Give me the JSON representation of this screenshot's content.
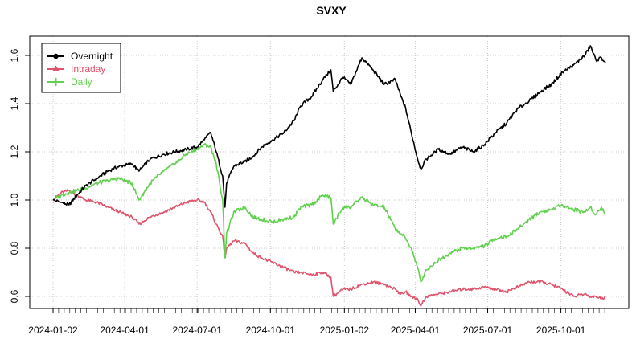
{
  "chart_data": {
    "type": "line",
    "title": "SVXY",
    "xlabel": "",
    "ylabel": "",
    "grid": true,
    "legend_position": "top-left",
    "xlim": [
      "2024-01-02",
      "2025-11-30"
    ],
    "ylim": [
      0.55,
      1.68
    ],
    "x_ticks": [
      "2024-01-02",
      "2024-04-01",
      "2024-07-01",
      "2024-10-01",
      "2025-01-02",
      "2025-04-01",
      "2025-07-01",
      "2025-10-01"
    ],
    "y_ticks": [
      0.6,
      0.8,
      1.0,
      1.2,
      1.4,
      1.6
    ],
    "series": [
      {
        "name": "Overnight",
        "color": "#000000",
        "marker": "circle",
        "points": [
          [
            "2024-01-02",
            1.0
          ],
          [
            "2024-01-12",
            0.99
          ],
          [
            "2024-01-22",
            0.98
          ],
          [
            "2024-02-01",
            1.02
          ],
          [
            "2024-02-12",
            1.06
          ],
          [
            "2024-02-26",
            1.09
          ],
          [
            "2024-03-11",
            1.12
          ],
          [
            "2024-03-25",
            1.14
          ],
          [
            "2024-04-10",
            1.15
          ],
          [
            "2024-04-19",
            1.12
          ],
          [
            "2024-05-03",
            1.17
          ],
          [
            "2024-05-20",
            1.19
          ],
          [
            "2024-06-03",
            1.2
          ],
          [
            "2024-06-17",
            1.21
          ],
          [
            "2024-07-01",
            1.22
          ],
          [
            "2024-07-10",
            1.25
          ],
          [
            "2024-07-18",
            1.28
          ],
          [
            "2024-07-25",
            1.2
          ],
          [
            "2024-08-02",
            1.1
          ],
          [
            "2024-08-05",
            0.97
          ],
          [
            "2024-08-07",
            1.07
          ],
          [
            "2024-08-16",
            1.14
          ],
          [
            "2024-08-30",
            1.16
          ],
          [
            "2024-09-09",
            1.18
          ],
          [
            "2024-09-20",
            1.22
          ],
          [
            "2024-10-04",
            1.25
          ],
          [
            "2024-10-18",
            1.28
          ],
          [
            "2024-10-31",
            1.33
          ],
          [
            "2024-11-08",
            1.39
          ],
          [
            "2024-11-22",
            1.43
          ],
          [
            "2024-12-06",
            1.5
          ],
          [
            "2024-12-16",
            1.54
          ],
          [
            "2024-12-19",
            1.45
          ],
          [
            "2024-12-31",
            1.51
          ],
          [
            "2025-01-10",
            1.48
          ],
          [
            "2025-01-24",
            1.59
          ],
          [
            "2025-02-07",
            1.54
          ],
          [
            "2025-02-21",
            1.48
          ],
          [
            "2025-03-07",
            1.5
          ],
          [
            "2025-03-14",
            1.43
          ],
          [
            "2025-03-20",
            1.38
          ],
          [
            "2025-03-27",
            1.28
          ],
          [
            "2025-04-04",
            1.17
          ],
          [
            "2025-04-08",
            1.13
          ],
          [
            "2025-04-15",
            1.17
          ],
          [
            "2025-04-30",
            1.21
          ],
          [
            "2025-05-15",
            1.19
          ],
          [
            "2025-05-30",
            1.22
          ],
          [
            "2025-06-13",
            1.2
          ],
          [
            "2025-06-27",
            1.23
          ],
          [
            "2025-07-11",
            1.28
          ],
          [
            "2025-07-25",
            1.32
          ],
          [
            "2025-08-08",
            1.38
          ],
          [
            "2025-08-22",
            1.41
          ],
          [
            "2025-09-05",
            1.45
          ],
          [
            "2025-09-19",
            1.48
          ],
          [
            "2025-10-03",
            1.53
          ],
          [
            "2025-10-17",
            1.56
          ],
          [
            "2025-10-31",
            1.6
          ],
          [
            "2025-11-07",
            1.64
          ],
          [
            "2025-11-14",
            1.58
          ],
          [
            "2025-11-21",
            1.59
          ],
          [
            "2025-11-26",
            1.57
          ]
        ]
      },
      {
        "name": "Intraday",
        "color": "#DF536B",
        "marker": "triangle",
        "points": [
          [
            "2024-01-02",
            1.0
          ],
          [
            "2024-01-12",
            1.03
          ],
          [
            "2024-01-22",
            1.04
          ],
          [
            "2024-02-01",
            1.02
          ],
          [
            "2024-02-12",
            1.0
          ],
          [
            "2024-02-26",
            0.99
          ],
          [
            "2024-03-11",
            0.97
          ],
          [
            "2024-03-25",
            0.95
          ],
          [
            "2024-04-10",
            0.93
          ],
          [
            "2024-04-19",
            0.9
          ],
          [
            "2024-05-03",
            0.93
          ],
          [
            "2024-05-20",
            0.95
          ],
          [
            "2024-06-03",
            0.97
          ],
          [
            "2024-06-17",
            0.99
          ],
          [
            "2024-07-01",
            1.0
          ],
          [
            "2024-07-10",
            0.99
          ],
          [
            "2024-07-18",
            0.95
          ],
          [
            "2024-07-25",
            0.9
          ],
          [
            "2024-08-02",
            0.85
          ],
          [
            "2024-08-05",
            0.76
          ],
          [
            "2024-08-07",
            0.8
          ],
          [
            "2024-08-16",
            0.83
          ],
          [
            "2024-08-30",
            0.82
          ],
          [
            "2024-09-09",
            0.78
          ],
          [
            "2024-09-20",
            0.76
          ],
          [
            "2024-10-04",
            0.74
          ],
          [
            "2024-10-18",
            0.72
          ],
          [
            "2024-10-31",
            0.7
          ],
          [
            "2024-11-08",
            0.7
          ],
          [
            "2024-11-22",
            0.69
          ],
          [
            "2024-12-06",
            0.7
          ],
          [
            "2024-12-16",
            0.68
          ],
          [
            "2024-12-19",
            0.6
          ],
          [
            "2024-12-31",
            0.63
          ],
          [
            "2025-01-10",
            0.63
          ],
          [
            "2025-01-24",
            0.65
          ],
          [
            "2025-02-07",
            0.66
          ],
          [
            "2025-02-21",
            0.65
          ],
          [
            "2025-03-07",
            0.63
          ],
          [
            "2025-03-14",
            0.61
          ],
          [
            "2025-03-20",
            0.62
          ],
          [
            "2025-03-27",
            0.6
          ],
          [
            "2025-04-04",
            0.59
          ],
          [
            "2025-04-08",
            0.56
          ],
          [
            "2025-04-15",
            0.6
          ],
          [
            "2025-04-30",
            0.61
          ],
          [
            "2025-05-15",
            0.62
          ],
          [
            "2025-05-30",
            0.63
          ],
          [
            "2025-06-13",
            0.63
          ],
          [
            "2025-06-27",
            0.64
          ],
          [
            "2025-07-11",
            0.63
          ],
          [
            "2025-07-25",
            0.62
          ],
          [
            "2025-08-08",
            0.64
          ],
          [
            "2025-08-22",
            0.66
          ],
          [
            "2025-09-05",
            0.66
          ],
          [
            "2025-09-19",
            0.65
          ],
          [
            "2025-10-03",
            0.63
          ],
          [
            "2025-10-17",
            0.6
          ],
          [
            "2025-10-31",
            0.61
          ],
          [
            "2025-11-07",
            0.6
          ],
          [
            "2025-11-14",
            0.6
          ],
          [
            "2025-11-21",
            0.59
          ],
          [
            "2025-11-26",
            0.6
          ]
        ]
      },
      {
        "name": "Daily",
        "color": "#61D04F",
        "marker": "plus",
        "points": [
          [
            "2024-01-02",
            1.0
          ],
          [
            "2024-01-12",
            1.02
          ],
          [
            "2024-01-22",
            1.03
          ],
          [
            "2024-02-01",
            1.04
          ],
          [
            "2024-02-12",
            1.05
          ],
          [
            "2024-02-26",
            1.07
          ],
          [
            "2024-03-11",
            1.08
          ],
          [
            "2024-03-25",
            1.09
          ],
          [
            "2024-04-10",
            1.07
          ],
          [
            "2024-04-19",
            1.0
          ],
          [
            "2024-05-03",
            1.07
          ],
          [
            "2024-05-20",
            1.12
          ],
          [
            "2024-06-03",
            1.15
          ],
          [
            "2024-06-17",
            1.19
          ],
          [
            "2024-07-01",
            1.21
          ],
          [
            "2024-07-10",
            1.23
          ],
          [
            "2024-07-18",
            1.22
          ],
          [
            "2024-07-25",
            1.15
          ],
          [
            "2024-08-02",
            1.0
          ],
          [
            "2024-08-05",
            0.76
          ],
          [
            "2024-08-07",
            0.86
          ],
          [
            "2024-08-16",
            0.95
          ],
          [
            "2024-08-30",
            0.97
          ],
          [
            "2024-09-09",
            0.93
          ],
          [
            "2024-09-20",
            0.92
          ],
          [
            "2024-10-04",
            0.91
          ],
          [
            "2024-10-18",
            0.92
          ],
          [
            "2024-10-31",
            0.93
          ],
          [
            "2024-11-08",
            0.97
          ],
          [
            "2024-11-22",
            0.98
          ],
          [
            "2024-12-06",
            1.02
          ],
          [
            "2024-12-16",
            1.01
          ],
          [
            "2024-12-19",
            0.9
          ],
          [
            "2024-12-31",
            0.97
          ],
          [
            "2025-01-10",
            0.97
          ],
          [
            "2025-01-24",
            1.01
          ],
          [
            "2025-02-07",
            0.98
          ],
          [
            "2025-02-21",
            0.97
          ],
          [
            "2025-03-07",
            0.88
          ],
          [
            "2025-03-14",
            0.86
          ],
          [
            "2025-03-20",
            0.84
          ],
          [
            "2025-03-27",
            0.8
          ],
          [
            "2025-04-04",
            0.72
          ],
          [
            "2025-04-08",
            0.66
          ],
          [
            "2025-04-15",
            0.71
          ],
          [
            "2025-04-30",
            0.75
          ],
          [
            "2025-05-15",
            0.78
          ],
          [
            "2025-05-30",
            0.8
          ],
          [
            "2025-06-13",
            0.8
          ],
          [
            "2025-06-27",
            0.81
          ],
          [
            "2025-07-11",
            0.84
          ],
          [
            "2025-07-25",
            0.85
          ],
          [
            "2025-08-08",
            0.88
          ],
          [
            "2025-08-22",
            0.92
          ],
          [
            "2025-09-05",
            0.95
          ],
          [
            "2025-09-19",
            0.96
          ],
          [
            "2025-10-03",
            0.98
          ],
          [
            "2025-10-17",
            0.96
          ],
          [
            "2025-10-31",
            0.95
          ],
          [
            "2025-11-07",
            0.97
          ],
          [
            "2025-11-14",
            0.94
          ],
          [
            "2025-11-21",
            0.97
          ],
          [
            "2025-11-26",
            0.94
          ]
        ]
      }
    ]
  }
}
